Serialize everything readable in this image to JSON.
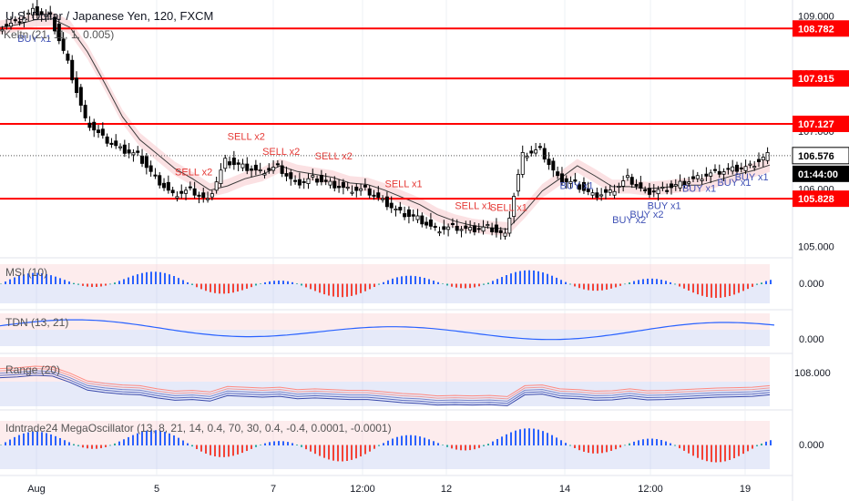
{
  "header": {
    "title": "U.S. Dollar / Japanese Yen, 120, FXCM",
    "main_indicator": "Keltn (21, ",
    "main_indicator_params": "11, 1, 0.005)"
  },
  "colors": {
    "level_line": "#ff0000",
    "price_box": "#000000",
    "time_box": "#000000",
    "up_candle": "#ffffff",
    "down_candle": "#000000",
    "band_fill": "#f8c9cc",
    "band_fill_blue": "#b8c4ef",
    "keltner_line": "#3a3a3a",
    "osc_blue": "#2962ff",
    "osc_red": "#f44336",
    "osc_green": "#26a69a",
    "sell_text": "#e53935",
    "buy_text": "#3f51b5"
  },
  "chart_data": {
    "type": "candlestick",
    "symbol": "U.S. Dollar / Japanese Yen",
    "timeframe": "120",
    "source": "FXCM",
    "ylim": [
      104.85,
      109.15
    ],
    "y_ticks": [
      "109.000",
      "108.000",
      "107.000",
      "106.000",
      "105.000"
    ],
    "horizontal_levels": [
      108.782,
      107.915,
      107.127,
      105.828
    ],
    "last_price": "106.576",
    "countdown": "01:44:00",
    "x_ticks": [
      "Aug",
      "5",
      "7",
      "12:00",
      "12",
      "14",
      "12:00",
      "19"
    ],
    "price_path": [
      108.8,
      108.9,
      109.1,
      109.0,
      108.2,
      107.2,
      106.9,
      106.7,
      106.6,
      106.2,
      105.9,
      106.0,
      105.8,
      106.5,
      106.4,
      106.3,
      106.4,
      106.1,
      106.2,
      106.1,
      106.0,
      106.0,
      105.8,
      105.6,
      105.5,
      105.3,
      105.35,
      105.3,
      105.35,
      105.2,
      106.6,
      106.7,
      106.2,
      106.1,
      105.9,
      105.95,
      106.2,
      105.95,
      106.0,
      106.1,
      106.2,
      106.3,
      106.35,
      106.4,
      106.6
    ],
    "signals": {
      "sell": [
        "SELL x2",
        "SELL x2",
        "SELL x2",
        "SELL x2",
        "SELL x1",
        "SELL x1",
        "SELL x1"
      ],
      "buy": [
        "BUY x1",
        "BUY x1",
        "BUY x2",
        "BUY x2",
        "BUY x1",
        "BUY x1",
        "BUY x1",
        "BUY x1"
      ]
    },
    "sub_panels": [
      {
        "name": "MSI (10)",
        "value": "0.000"
      },
      {
        "name": "TDN (13, 21)",
        "value": "0.000"
      },
      {
        "name": "Range (20)",
        "value": "108.000"
      },
      {
        "name": "Idntrade24 MegaOscillator (13, 8, 21, 14, 0.4, 70, 30, 0.4, -0.4, 0.0001, -0.0001)",
        "value": "0.000"
      }
    ]
  }
}
